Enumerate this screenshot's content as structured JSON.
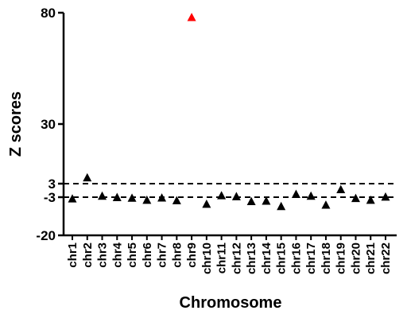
{
  "chart_data": {
    "type": "scatter",
    "xlabel": "Chromosome",
    "ylabel": "Z scores",
    "categories": [
      "chr1",
      "chr2",
      "chr3",
      "chr4",
      "chr5",
      "chr6",
      "chr7",
      "chr8",
      "chr9",
      "chr10",
      "chr11",
      "chr12",
      "chr13",
      "chr14",
      "chr15",
      "chr16",
      "chr17",
      "chr18",
      "chr19",
      "chr20",
      "chr21",
      "chr22"
    ],
    "values": [
      -3.6,
      5.8,
      -2.4,
      -3.0,
      -3.3,
      -4.2,
      -3.2,
      -4.4,
      78.0,
      -6.0,
      -2.2,
      -2.6,
      -4.8,
      -4.6,
      -7.0,
      -1.6,
      -2.4,
      -6.4,
      0.5,
      -3.4,
      -4.2,
      -2.8
    ],
    "ylim": [
      -20,
      80
    ],
    "yticks": [
      80,
      30,
      3,
      -3,
      -20
    ],
    "ytick_labels": [
      "80",
      "30",
      "3",
      "-3",
      "-20"
    ],
    "reference_lines": [
      3,
      -3
    ],
    "marker": "triangle",
    "colors": {
      "default": "#000000",
      "highlight": "#ff0000"
    },
    "highlighted_categories": [
      "chr9"
    ],
    "grid": false,
    "legend": "none"
  }
}
